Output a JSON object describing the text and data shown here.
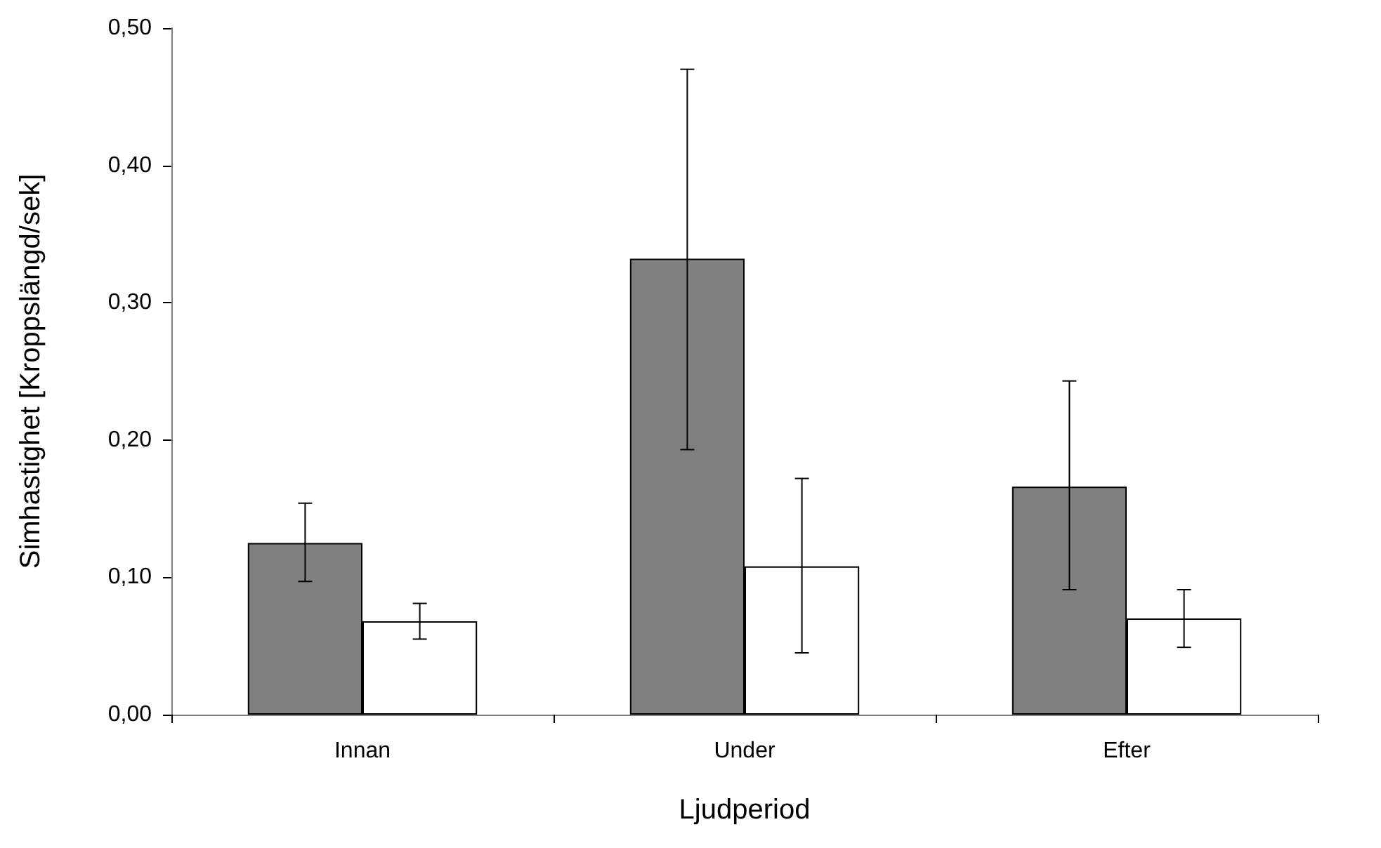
{
  "chart_data": {
    "type": "bar",
    "xlabel": "Ljudperiod",
    "ylabel": "Simhastighet [Kroppslängd/sek]",
    "categories": [
      "Innan",
      "Under",
      "Efter"
    ],
    "series": [
      {
        "color": "#808080",
        "values": [
          0.125,
          0.332,
          0.166
        ],
        "errors": [
          [
            0.097,
            0.154
          ],
          [
            0.193,
            0.47
          ],
          [
            0.091,
            0.243
          ]
        ]
      },
      {
        "color": "#ffffff",
        "values": [
          0.068,
          0.108,
          0.07
        ],
        "errors": [
          [
            0.055,
            0.081
          ],
          [
            0.045,
            0.172
          ],
          [
            0.049,
            0.091
          ]
        ]
      }
    ],
    "ylim": [
      0,
      0.5
    ],
    "yticks": [
      {
        "value": 0,
        "label": "0,00"
      },
      {
        "value": 0.1,
        "label": "0,10"
      },
      {
        "value": 0.2,
        "label": "0,20"
      },
      {
        "value": 0.3,
        "label": "0,30"
      },
      {
        "value": 0.4,
        "label": "0,40"
      },
      {
        "value": 0.5,
        "label": "0,50"
      }
    ],
    "grid": false
  }
}
